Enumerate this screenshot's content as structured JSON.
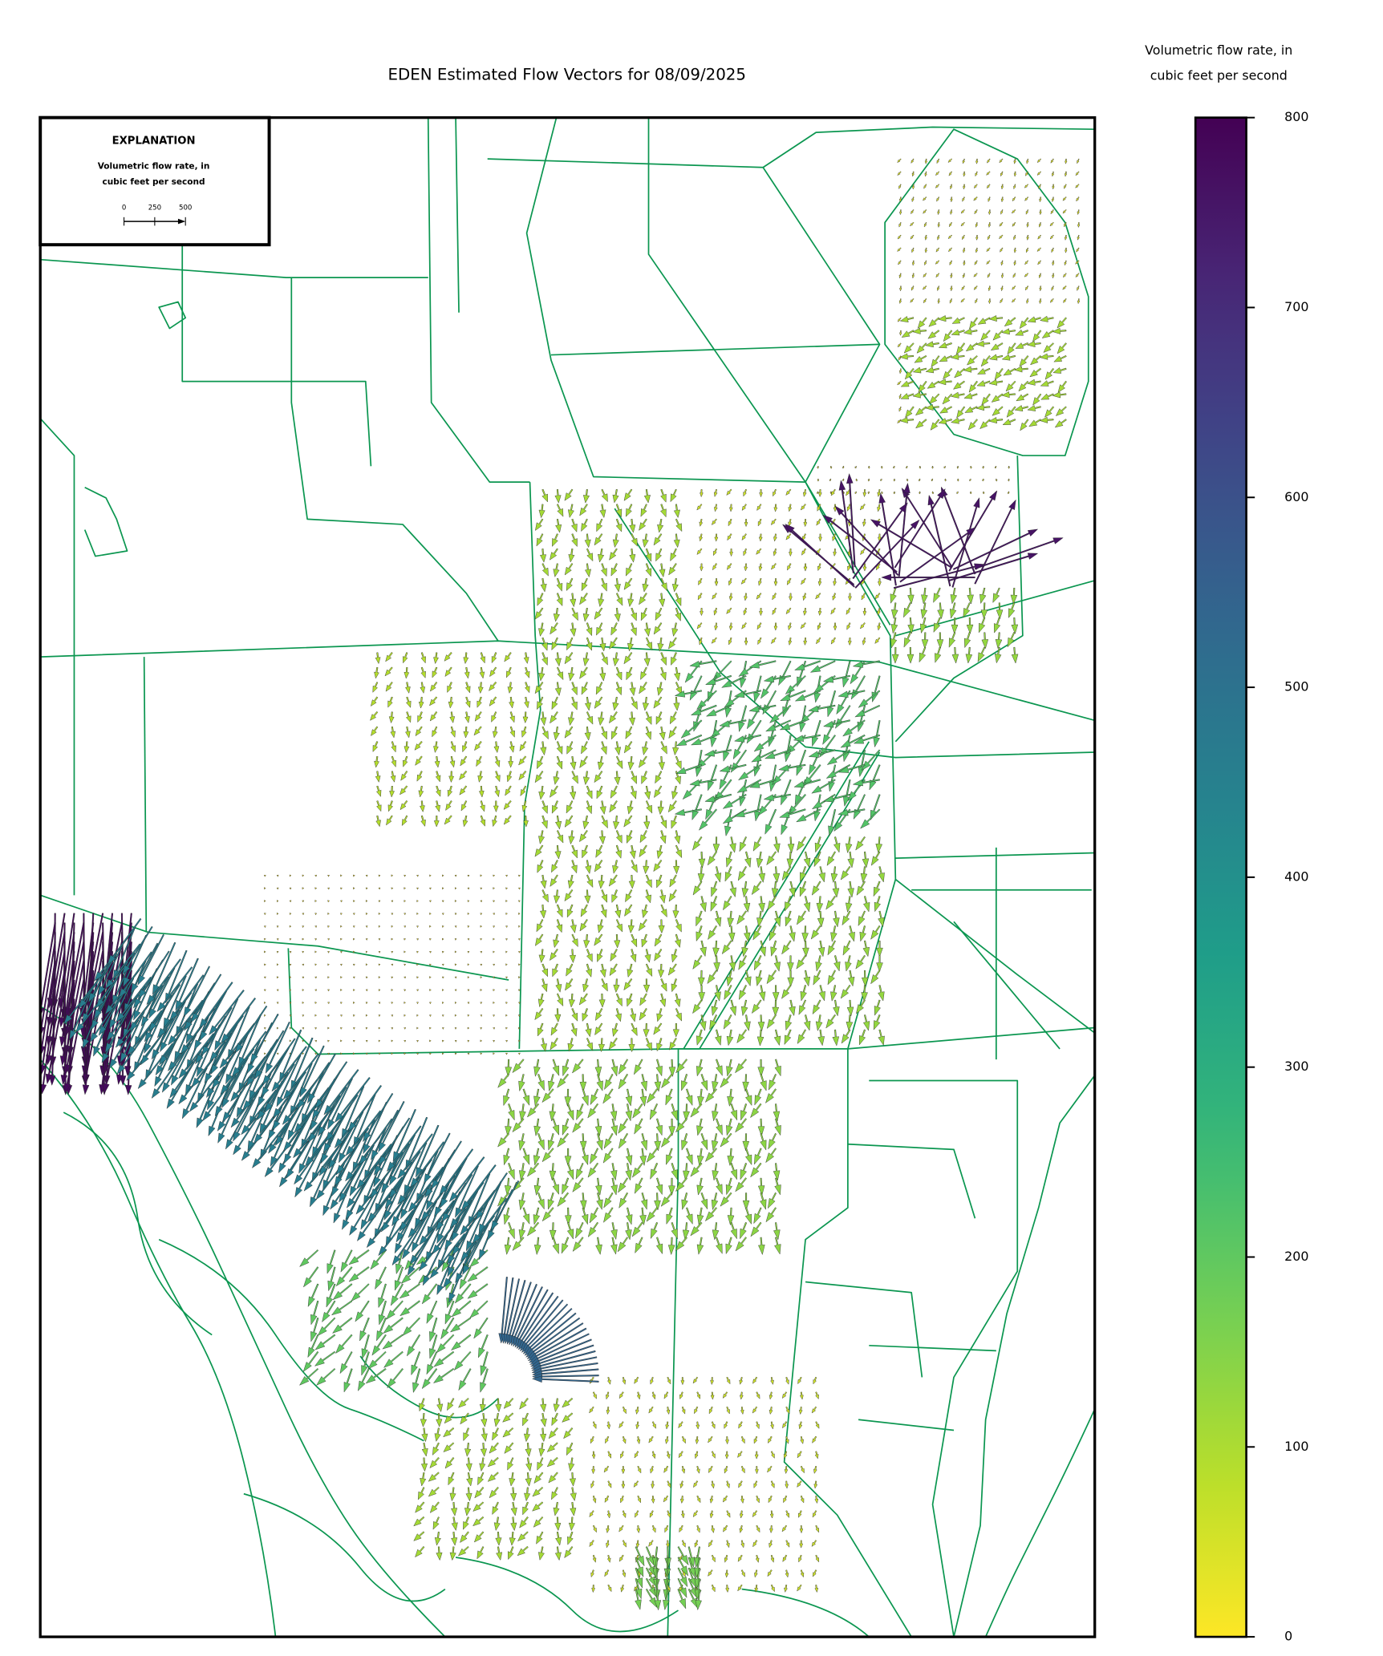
{
  "title": "EDEN Estimated Flow Vectors for 08/09/2025",
  "colorbar": {
    "label": [
      "Volumetric flow rate, in",
      "cubic feet per second"
    ],
    "colormap": "viridis_r",
    "lim": [
      0,
      800
    ],
    "ticks": [
      0,
      100,
      200,
      300,
      400,
      500,
      600,
      700,
      800
    ]
  },
  "explanation": {
    "title": "EXPLANATION",
    "subtitle": [
      "Volumetric flow rate, in",
      "cubic feet per second"
    ],
    "scale_ticks": [
      0,
      250,
      500
    ]
  },
  "flow_vectors": {
    "magnitudes": [
      40,
      110,
      760,
      20,
      130,
      110,
      60,
      220,
      130,
      90,
      5,
      460,
      780,
      140,
      540,
      60,
      110,
      170,
      200
    ]
  }
}
